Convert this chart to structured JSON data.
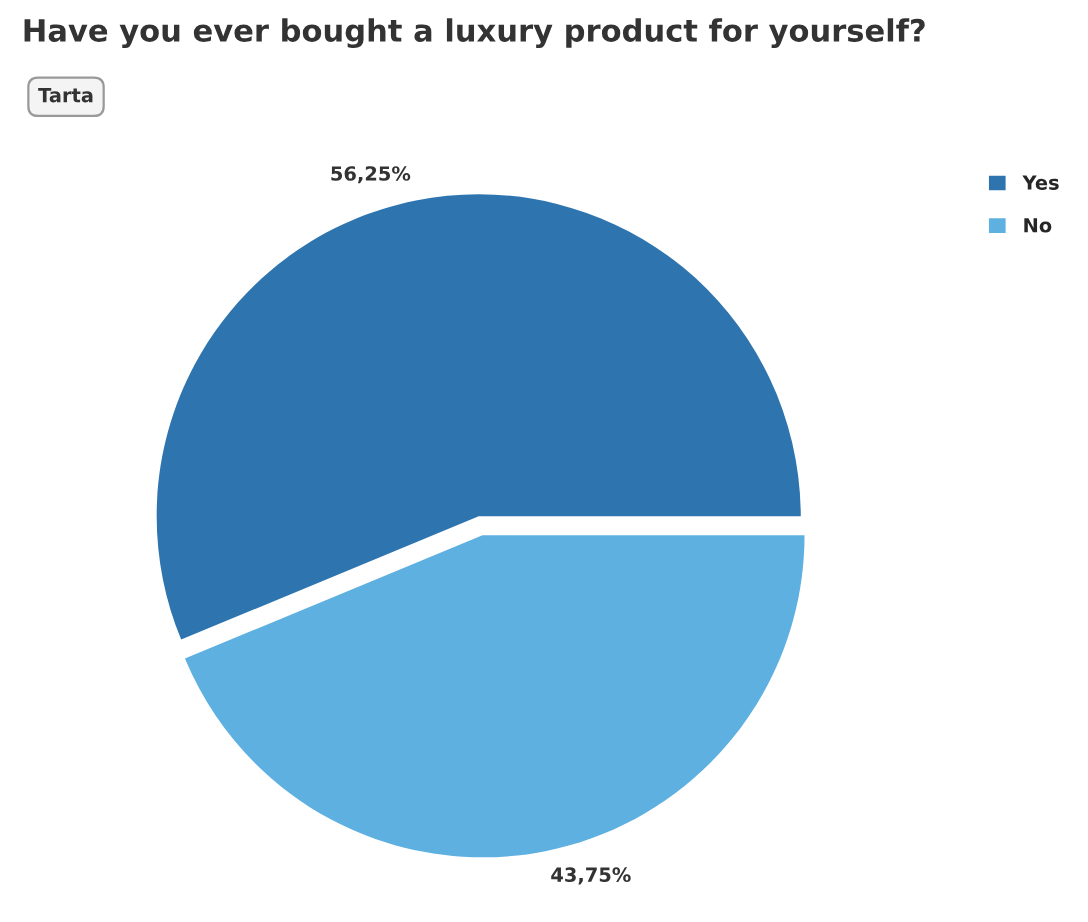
{
  "chart_data": {
    "type": "pie",
    "title": "Have you ever bought a luxury product for yourself?",
    "annotations": [
      "Tarta"
    ],
    "categories": [
      "Yes",
      "No"
    ],
    "values": [
      56.25,
      43.75
    ],
    "colors": [
      "#2e75b0",
      "#5eb0e0"
    ],
    "value_labels": [
      "56,25%",
      "43,75%"
    ],
    "legend": "top right"
  }
}
